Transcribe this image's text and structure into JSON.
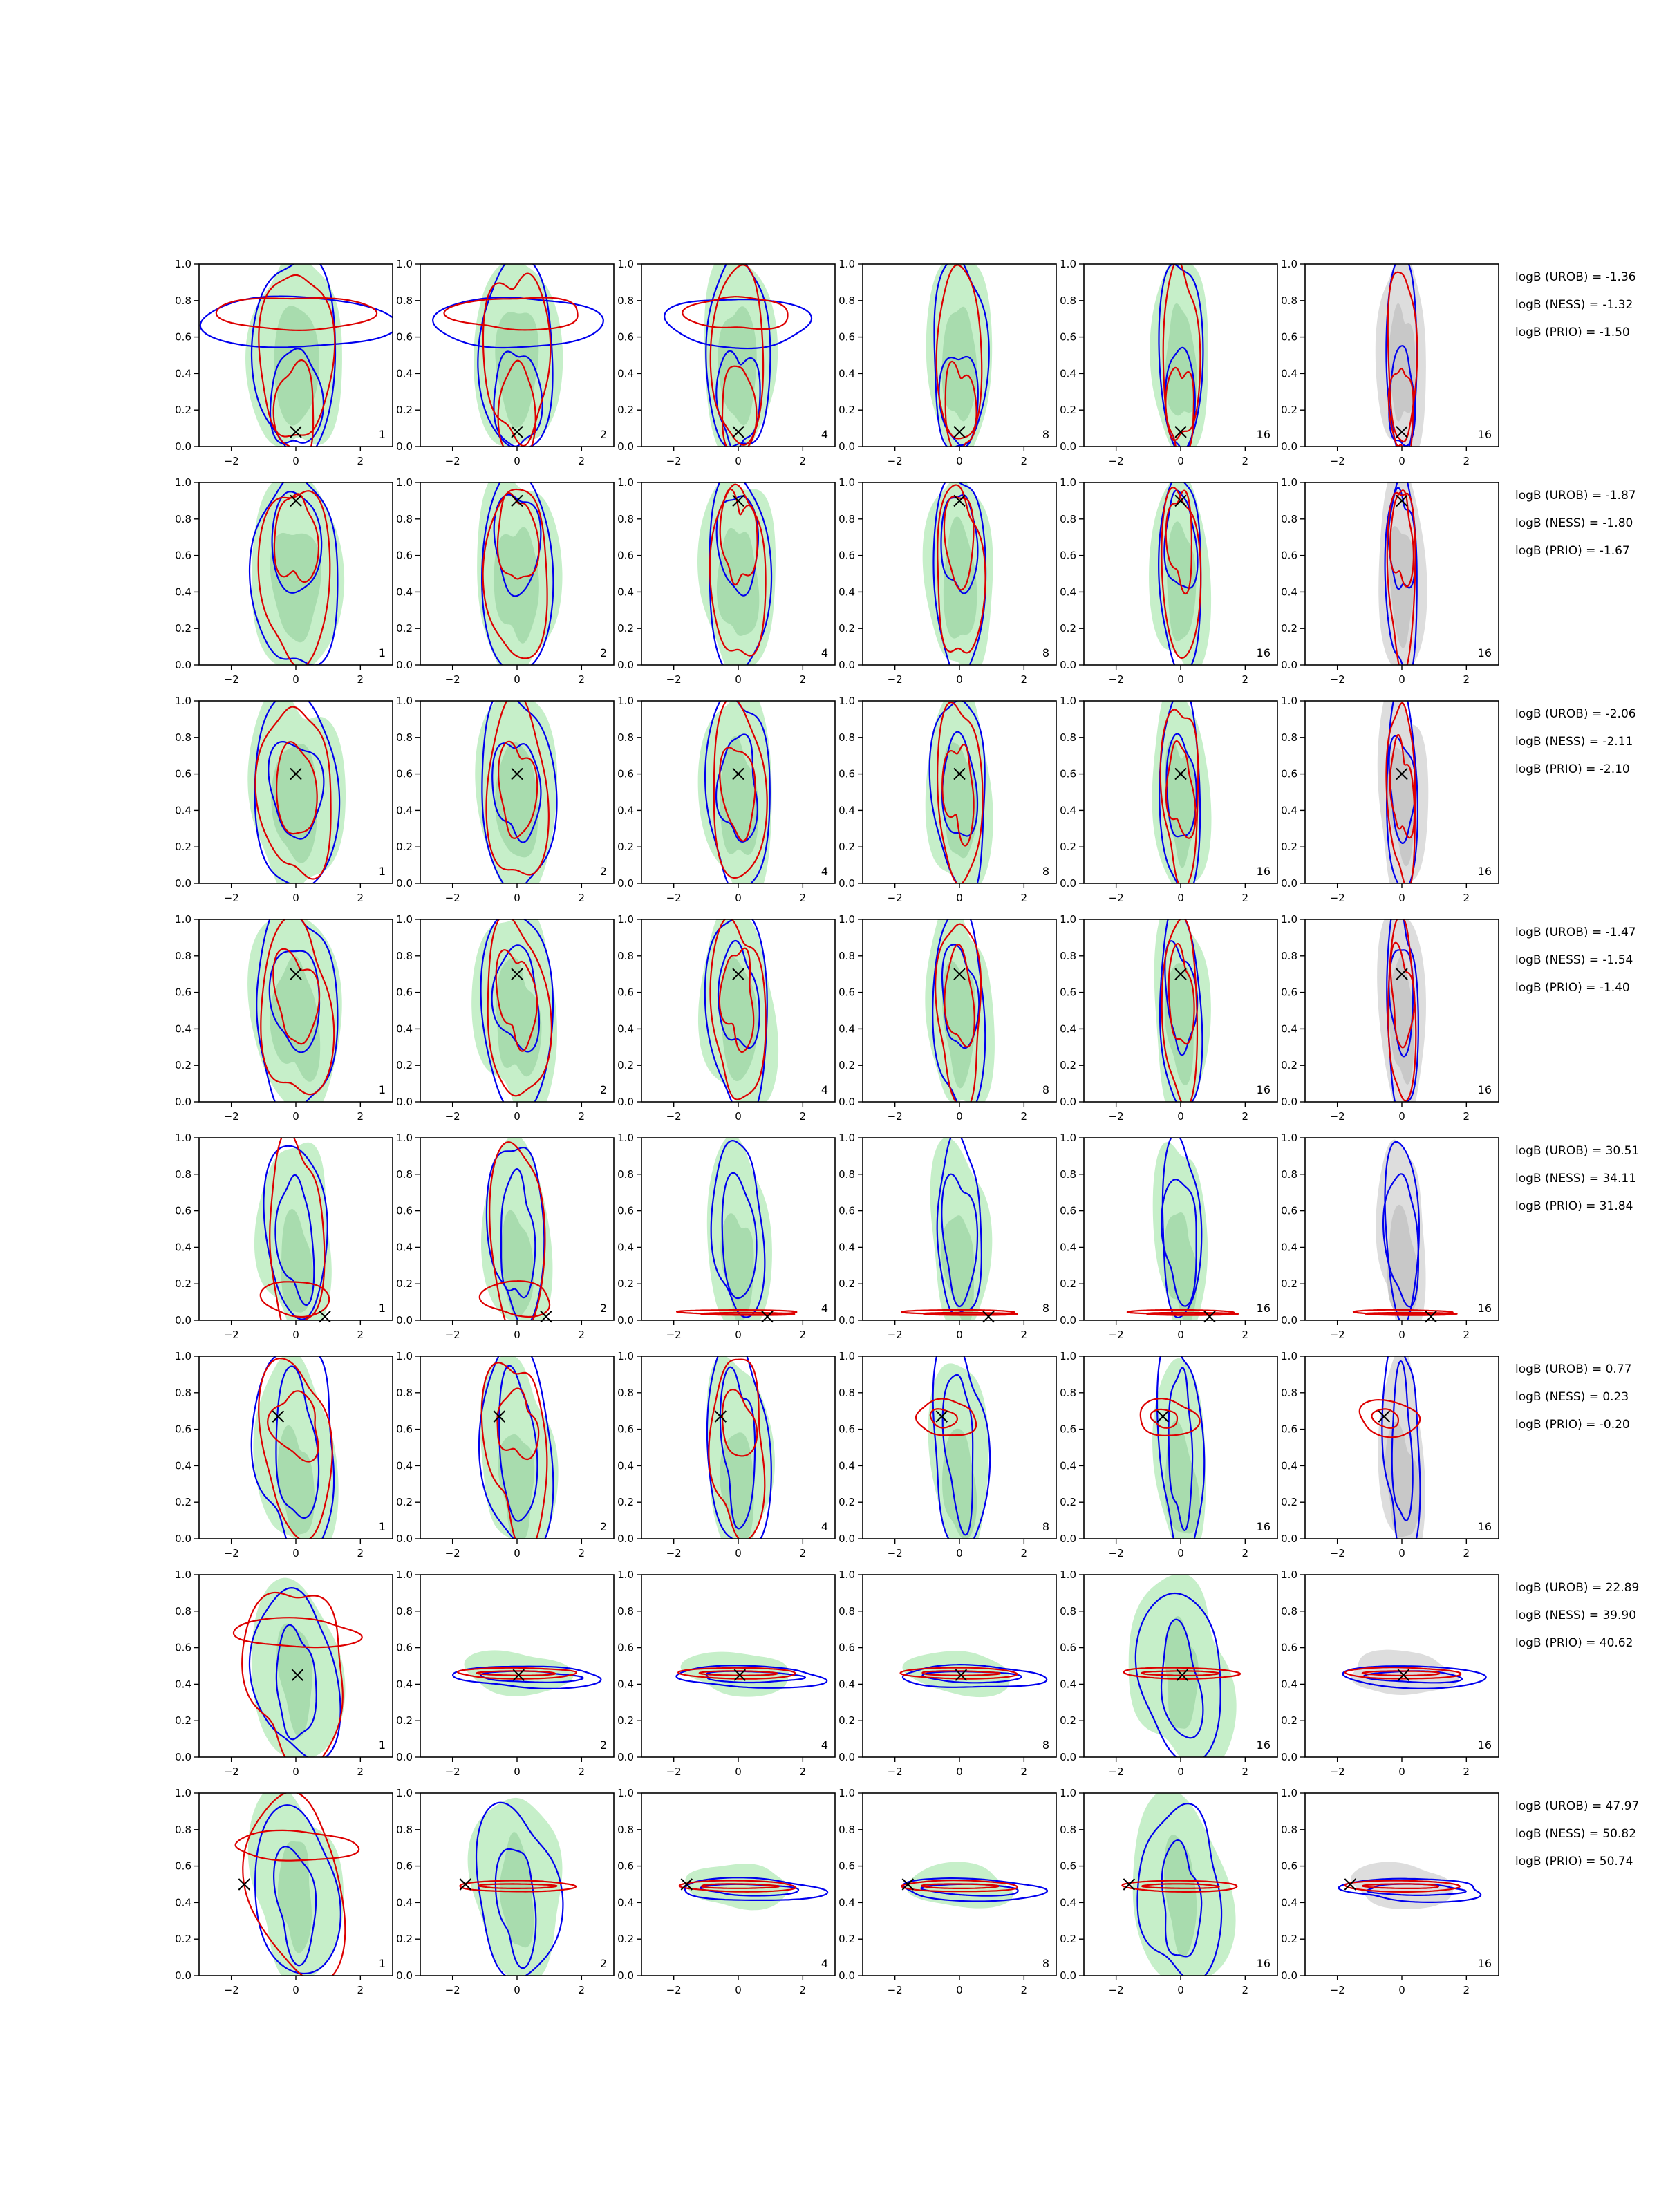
{
  "chart_data": {
    "type": "contour",
    "layout": {
      "rows": 8,
      "cols": 6
    },
    "xlim": [
      -3,
      3
    ],
    "ylim": [
      0,
      1
    ],
    "x_ticks": [
      "−2",
      "0",
      "2"
    ],
    "y_ticks": [
      "0.0",
      "0.2",
      "0.4",
      "0.6",
      "0.8",
      "1.0"
    ],
    "column_labels": [
      "1",
      "2",
      "4",
      "8",
      "16",
      "16"
    ],
    "colors": {
      "blue": "#0000ee",
      "red": "#dd0000",
      "green_fill": "#c6efc9",
      "green_inner": "#a8dcae",
      "gray_fill": "#dddddd",
      "gray_inner": "#c8c8c8"
    },
    "rows": [
      {
        "truth": [
          0.0,
          0.08
        ],
        "logB": [
          "logB (UROB) = -1.36",
          "logB (NESS) = -1.32",
          "logB (PRIO) = -1.50"
        ]
      },
      {
        "truth": [
          0.0,
          0.9
        ],
        "logB": [
          "logB (UROB) = -1.87",
          "logB (NESS) = -1.80",
          "logB (PRIO) = -1.67"
        ]
      },
      {
        "truth": [
          0.0,
          0.6
        ],
        "logB": [
          "logB (UROB) = -2.06",
          "logB (NESS) = -2.11",
          "logB (PRIO) = -2.10"
        ]
      },
      {
        "truth": [
          0.0,
          0.7
        ],
        "logB": [
          "logB (UROB) = -1.47",
          "logB (NESS) = -1.54",
          "logB (PRIO) = -1.40"
        ]
      },
      {
        "truth": [
          0.9,
          0.02
        ],
        "logB": [
          "logB (UROB) = 30.51",
          "logB (NESS) = 34.11",
          "logB (PRIO) = 31.84"
        ]
      },
      {
        "truth": [
          -0.55,
          0.67
        ],
        "logB": [
          "logB (UROB) = 0.77",
          "logB (NESS) = 0.23",
          "logB (PRIO) = -0.20"
        ]
      },
      {
        "truth": [
          0.05,
          0.45
        ],
        "logB": [
          "logB (UROB) = 22.89",
          "logB (NESS) = 39.90",
          "logB (PRIO) = 40.62"
        ]
      },
      {
        "truth": [
          -1.6,
          0.5
        ],
        "logB": [
          "logB (UROB) = 47.97",
          "logB (NESS) = 50.82",
          "logB (PRIO) = 50.74"
        ]
      }
    ]
  }
}
